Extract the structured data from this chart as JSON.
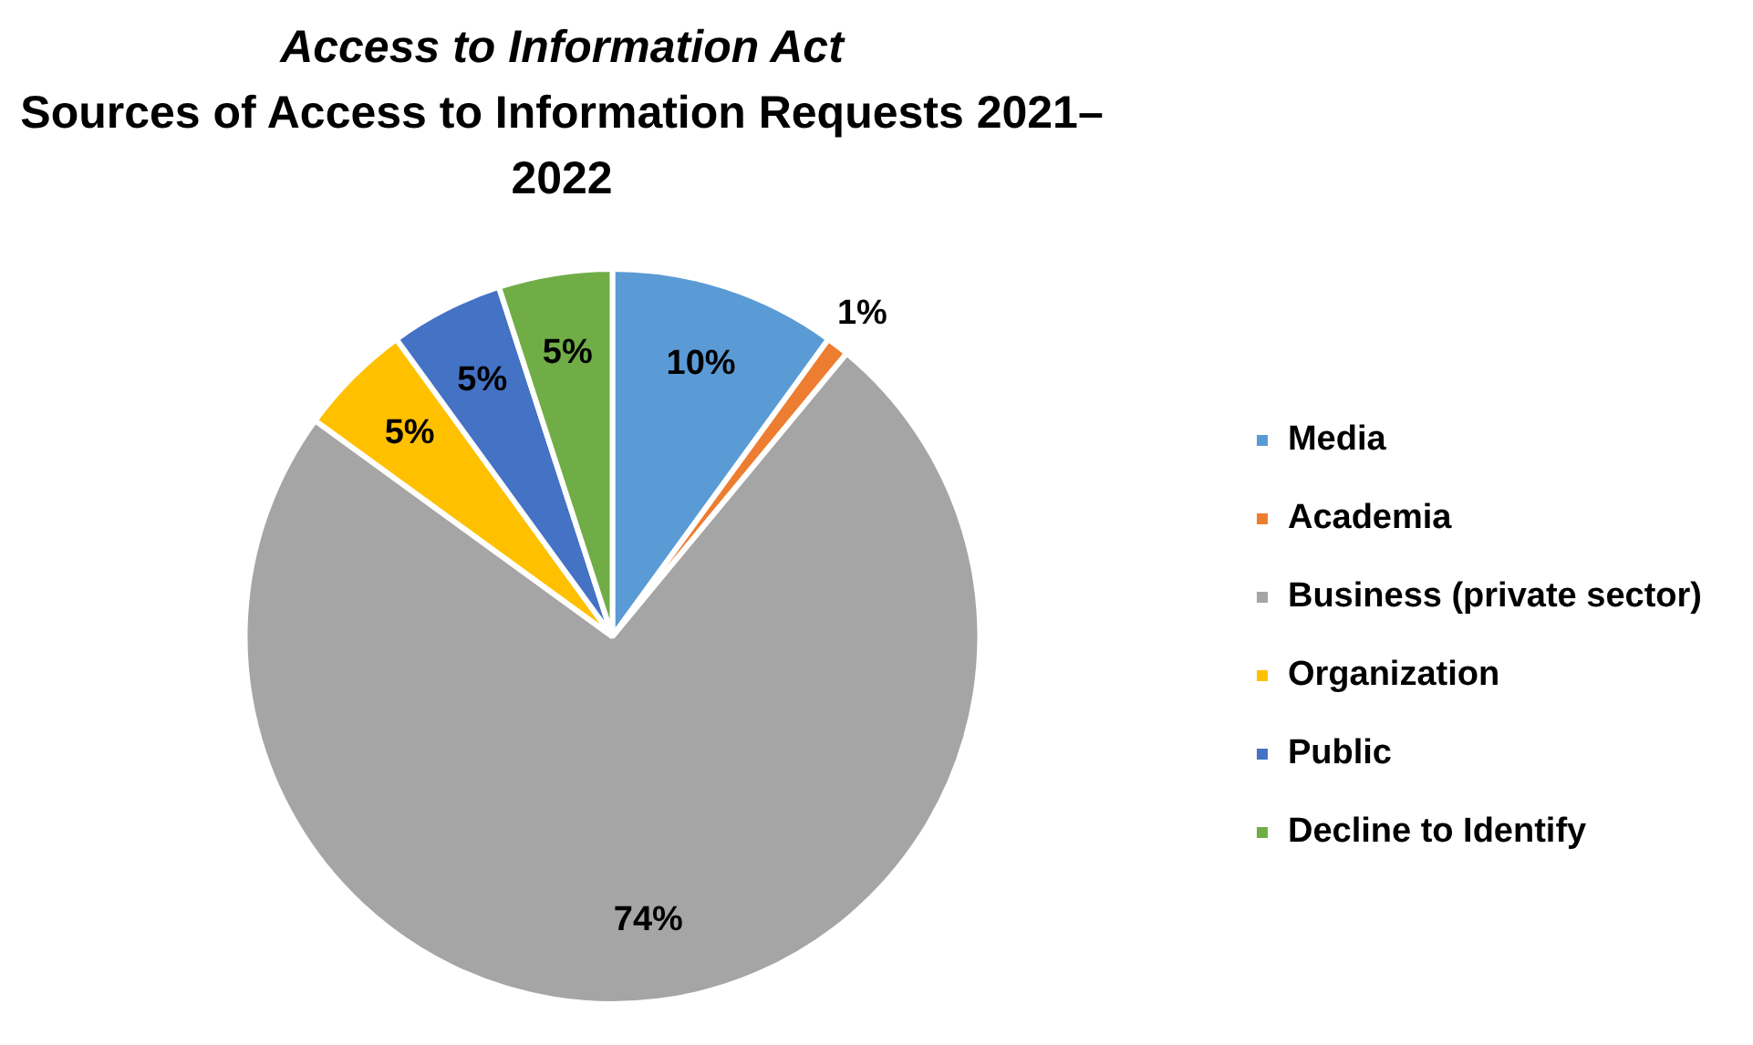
{
  "chart_data": {
    "type": "pie",
    "title": "Access to Information Act",
    "subtitle": "Sources of Access to Information Requests 2021–2022",
    "categories": [
      "Media",
      "Academia",
      "Business (private sector)",
      "Organization",
      "Public",
      "Decline to Identify"
    ],
    "values": [
      10,
      1,
      74,
      5,
      5,
      5
    ],
    "colors": [
      "#5b9bd5",
      "#ed7d31",
      "#a5a5a5",
      "#ffc000",
      "#4472c4",
      "#70ad47"
    ],
    "value_labels": [
      "10%",
      "1%",
      "74%",
      "5%",
      "5%",
      "5%"
    ],
    "legend": "right"
  }
}
